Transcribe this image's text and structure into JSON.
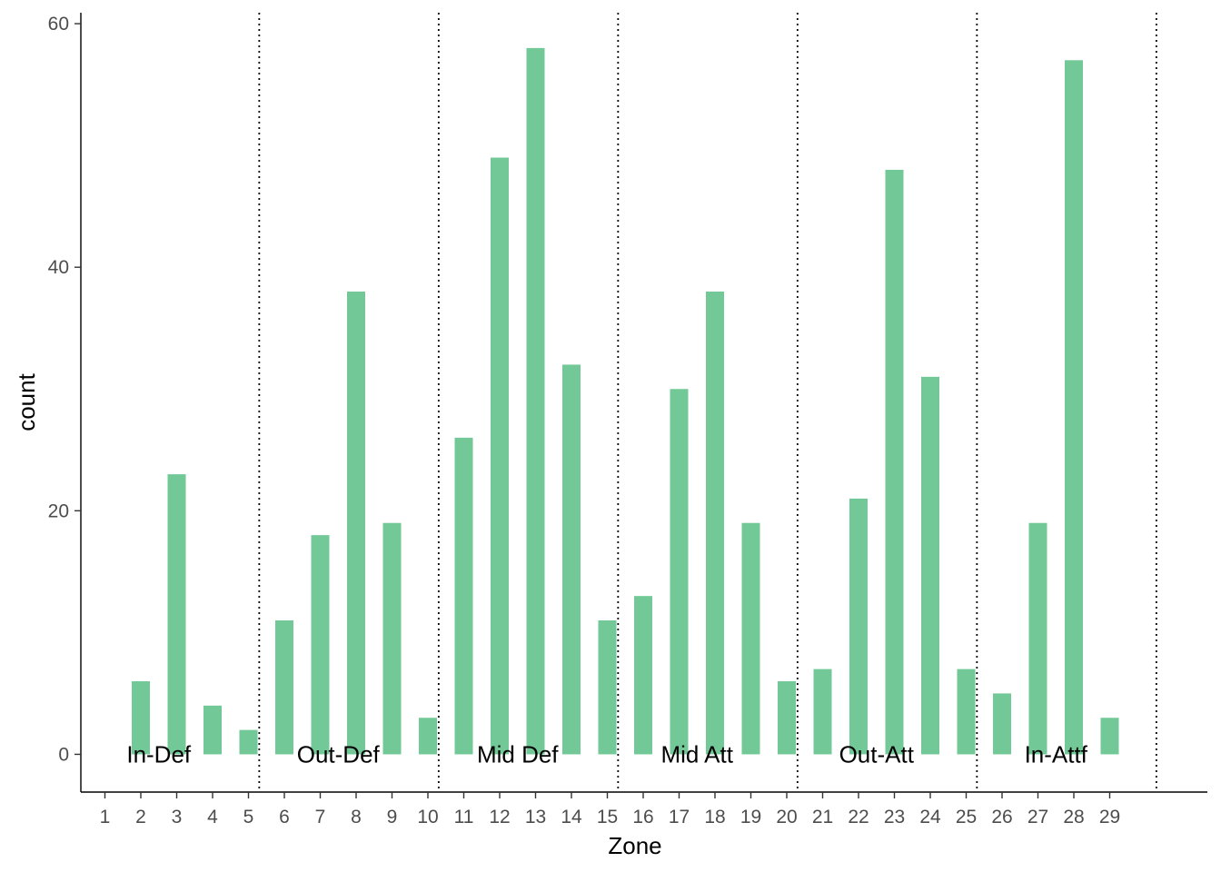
{
  "chart_data": {
    "type": "bar",
    "xlabel": "Zone",
    "ylabel": "count",
    "categories": [
      "1",
      "2",
      "3",
      "4",
      "5",
      "6",
      "7",
      "8",
      "9",
      "10",
      "11",
      "12",
      "13",
      "14",
      "15",
      "16",
      "17",
      "18",
      "19",
      "20",
      "21",
      "22",
      "23",
      "24",
      "25",
      "26",
      "27",
      "28",
      "29"
    ],
    "values": [
      0,
      6,
      23,
      4,
      2,
      11,
      18,
      38,
      19,
      3,
      26,
      49,
      58,
      32,
      11,
      13,
      30,
      38,
      19,
      6,
      7,
      21,
      48,
      31,
      7,
      5,
      19,
      57,
      3
    ],
    "ylim": [
      -3.1,
      60.9
    ],
    "yticks": [
      0,
      20,
      40,
      60
    ],
    "bar_color": "#72c997",
    "divider_positions": [
      5.3,
      10.3,
      15.3,
      20.3,
      25.3,
      30.3
    ],
    "zone_labels": [
      {
        "text": "In-Def",
        "x": 2.5
      },
      {
        "text": "Out-Def",
        "x": 7.5
      },
      {
        "text": "Mid Def",
        "x": 12.5
      },
      {
        "text": "Mid Att",
        "x": 17.5
      },
      {
        "text": "Out-Att",
        "x": 22.5
      },
      {
        "text": "In-Attf",
        "x": 27.5
      }
    ],
    "zone_label_y": 0,
    "grid": false,
    "legend": "none"
  }
}
